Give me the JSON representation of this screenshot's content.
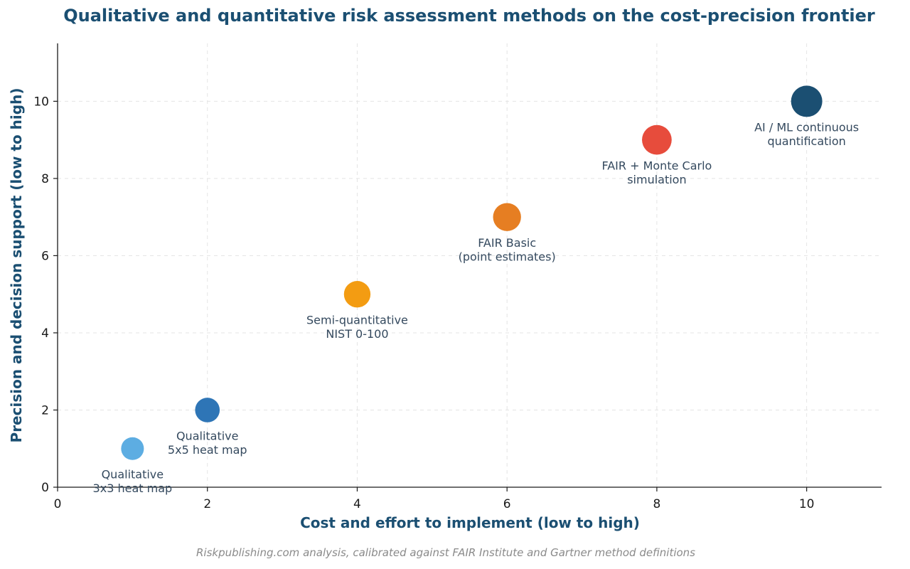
{
  "chart_data": {
    "type": "scatter",
    "title": "Qualitative and quantitative risk assessment methods on the cost-precision frontier",
    "xlabel": "Cost and effort to implement (low to high)",
    "ylabel": "Precision and decision support (low to high)",
    "xlim": [
      0,
      11
    ],
    "ylim": [
      0,
      11.5
    ],
    "xticks": [
      0,
      2,
      4,
      6,
      8,
      10
    ],
    "yticks": [
      0,
      2,
      4,
      6,
      8,
      10
    ],
    "grid": true,
    "points": [
      {
        "label": "Qualitative\n3x3 heat map",
        "x": 1,
        "y": 1,
        "color": "#5dade2",
        "size": 0.53
      },
      {
        "label": "Qualitative\n5x5 heat map",
        "x": 2,
        "y": 2,
        "color": "#2e75b6",
        "size": 0.62
      },
      {
        "label": "Semi-quantitative\nNIST 0-100",
        "x": 4,
        "y": 5,
        "color": "#f39c12",
        "size": 0.72
      },
      {
        "label": "FAIR Basic\n(point estimates)",
        "x": 6,
        "y": 7,
        "color": "#e67e22",
        "size": 0.8
      },
      {
        "label": "FAIR + Monte Carlo\nsimulation",
        "x": 8,
        "y": 9,
        "color": "#e74c3c",
        "size": 0.9
      },
      {
        "label": "AI / ML continuous\nquantification",
        "x": 10,
        "y": 10,
        "color": "#1b4f72",
        "size": 1.0
      }
    ],
    "source_note": "Riskpublishing.com analysis, calibrated against FAIR Institute and Gartner method definitions"
  }
}
